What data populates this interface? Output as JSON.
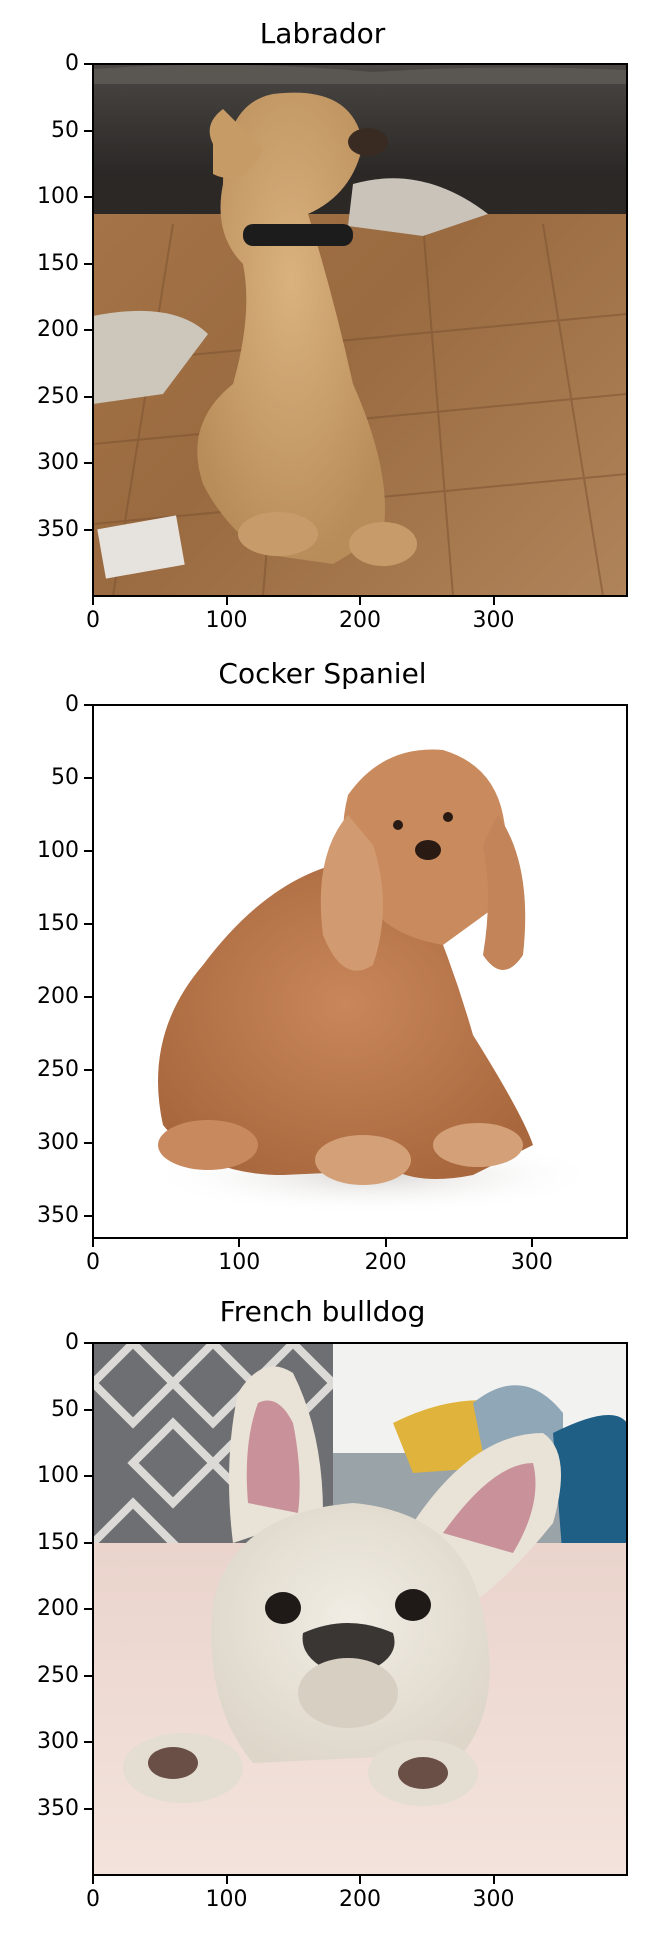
{
  "chart_data": [
    {
      "type": "image",
      "title": "Labrador",
      "subject": "labrador-photo",
      "xlim": [
        0,
        400
      ],
      "ylim": [
        400,
        0
      ],
      "xticks": [
        0,
        100,
        200,
        300
      ],
      "yticks": [
        0,
        50,
        100,
        150,
        200,
        250,
        300,
        350
      ]
    },
    {
      "type": "image",
      "title": "Cocker Spaniel",
      "subject": "cocker-spaniel-photo",
      "xlim": [
        0,
        365
      ],
      "ylim": [
        365,
        0
      ],
      "xticks": [
        0,
        100,
        200,
        300
      ],
      "yticks": [
        0,
        50,
        100,
        150,
        200,
        250,
        300,
        350
      ]
    },
    {
      "type": "image",
      "title": "French bulldog",
      "subject": "french-bulldog-photo",
      "xlim": [
        0,
        400
      ],
      "ylim": [
        400,
        0
      ],
      "xticks": [
        0,
        100,
        200,
        300
      ],
      "yticks": [
        0,
        50,
        100,
        150,
        200,
        250,
        300,
        350
      ]
    }
  ]
}
